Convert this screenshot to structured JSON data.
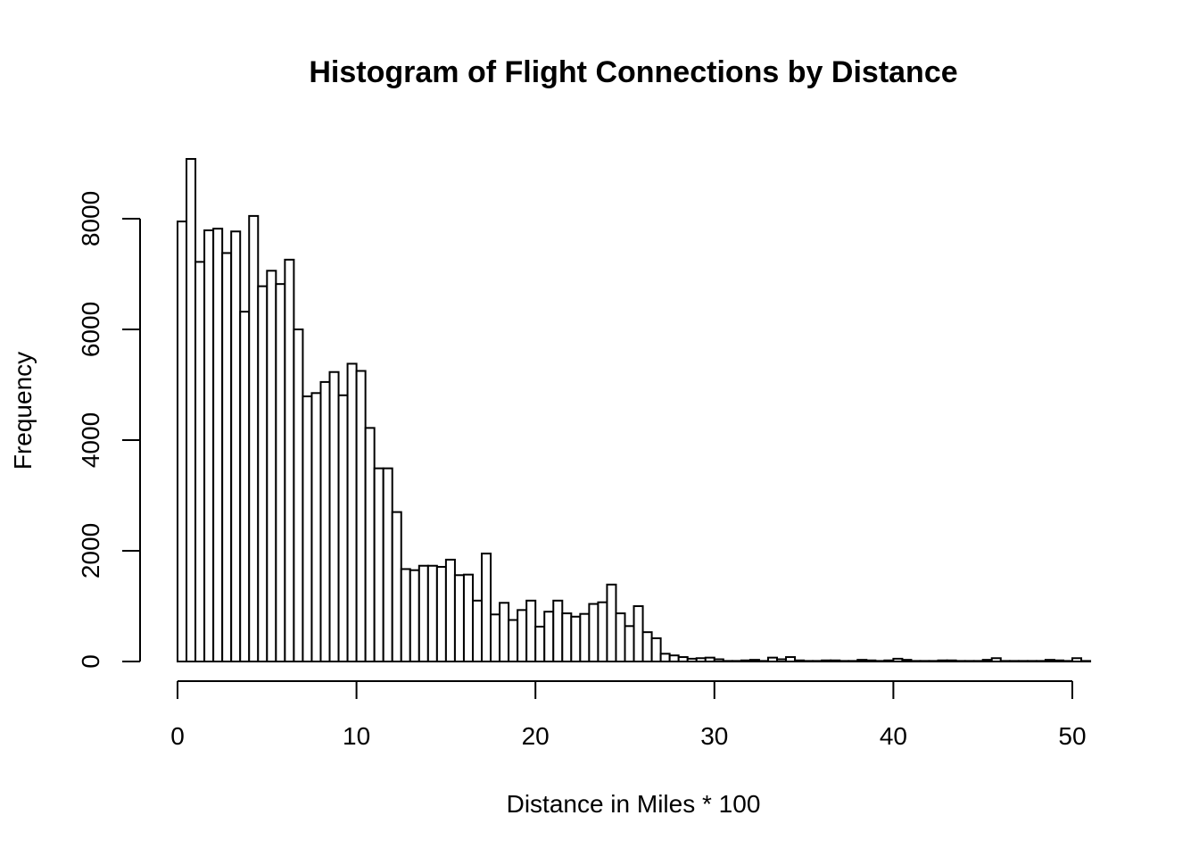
{
  "chart_data": {
    "type": "bar",
    "title": "Histogram of Flight Connections by Distance",
    "xlabel": "Distance in Miles * 100",
    "ylabel": "Frequency",
    "xlim": [
      0,
      51
    ],
    "ylim": [
      0,
      9100
    ],
    "x_ticks": [
      0,
      10,
      20,
      30,
      40,
      50
    ],
    "y_ticks": [
      0,
      2000,
      4000,
      6000,
      8000
    ],
    "bin_width": 0.5,
    "bin_start": 0,
    "values": [
      7950,
      9080,
      7220,
      7790,
      7820,
      7380,
      7770,
      6320,
      8050,
      6780,
      7060,
      6820,
      7260,
      6000,
      4790,
      4850,
      5050,
      5230,
      4810,
      5380,
      5250,
      4220,
      3490,
      3490,
      2700,
      1670,
      1650,
      1730,
      1730,
      1710,
      1840,
      1560,
      1570,
      1100,
      1950,
      850,
      1060,
      750,
      930,
      1100,
      630,
      900,
      1100,
      870,
      810,
      860,
      1040,
      1070,
      1390,
      870,
      640,
      1000,
      530,
      420,
      140,
      110,
      80,
      50,
      60,
      70,
      40,
      10,
      10,
      20,
      30,
      10,
      70,
      40,
      80,
      20,
      10,
      10,
      20,
      20,
      10,
      10,
      30,
      20,
      10,
      20,
      50,
      30,
      10,
      10,
      10,
      20,
      20,
      10,
      10,
      10,
      30,
      60,
      10,
      10,
      10,
      10,
      10,
      30,
      20,
      10,
      60,
      10
    ]
  }
}
